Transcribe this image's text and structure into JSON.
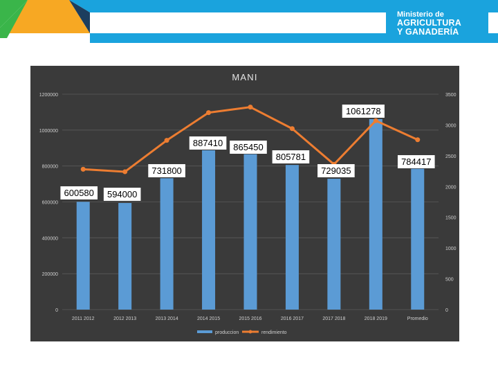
{
  "logo": {
    "line1": "Ministerio de",
    "line2": "AGRICULTURA",
    "line3": "Y GANADERÍA"
  },
  "colors": {
    "bar": "#5b9bd5",
    "line": "#ed7d31",
    "panel": "#3a3a3a",
    "header_blue": "#1aa3dd",
    "header_green": "#3ab54a",
    "header_orange": "#f7a823",
    "header_dark": "#1c3e5e"
  },
  "chart_data": {
    "type": "bar",
    "title": "MANI",
    "categories": [
      "2011 2012",
      "2012 2013",
      "2013 2014",
      "2014 2015",
      "2015 2016",
      "2016 2017",
      "2017 2018",
      "2018 2019",
      "Promedio"
    ],
    "series": [
      {
        "name": "produccion",
        "type": "bar",
        "axis": "left",
        "values": [
          600580,
          594000,
          731800,
          887410,
          865450,
          805781,
          729035,
          1061278,
          784417
        ]
      },
      {
        "name": "rendimiento",
        "type": "line",
        "axis": "right",
        "values": [
          2280,
          2240,
          2750,
          3200,
          3290,
          2940,
          2360,
          3070,
          2760
        ]
      }
    ],
    "data_labels": [
      "600580",
      "594000",
      "731800",
      "887410",
      "865450",
      "805781",
      "729035",
      "1061278",
      "784417"
    ],
    "y_left": {
      "min": 0,
      "max": 1200000,
      "ticks": [
        "0",
        "200000",
        "400000",
        "600000",
        "800000",
        "1000000",
        "1200000"
      ]
    },
    "y_right": {
      "min": 0,
      "max": 3500,
      "ticks": [
        "0",
        "500",
        "1000",
        "1500",
        "2000",
        "2500",
        "3000",
        "3500"
      ]
    },
    "grid": true,
    "legend_position": "bottom"
  }
}
